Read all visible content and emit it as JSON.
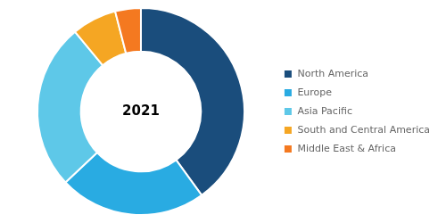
{
  "chart_data": {
    "type": "donut",
    "categories": [
      "North America",
      "Europe",
      "Asia Pacific",
      "South and Central America",
      "Middle East & Africa"
    ],
    "values": [
      40,
      23,
      26,
      7,
      4
    ],
    "colors": [
      "#1a4d7c",
      "#29abe2",
      "#5ec8e8",
      "#f5a623",
      "#f47920"
    ],
    "annotations": [
      "2021"
    ],
    "legend": "right"
  }
}
